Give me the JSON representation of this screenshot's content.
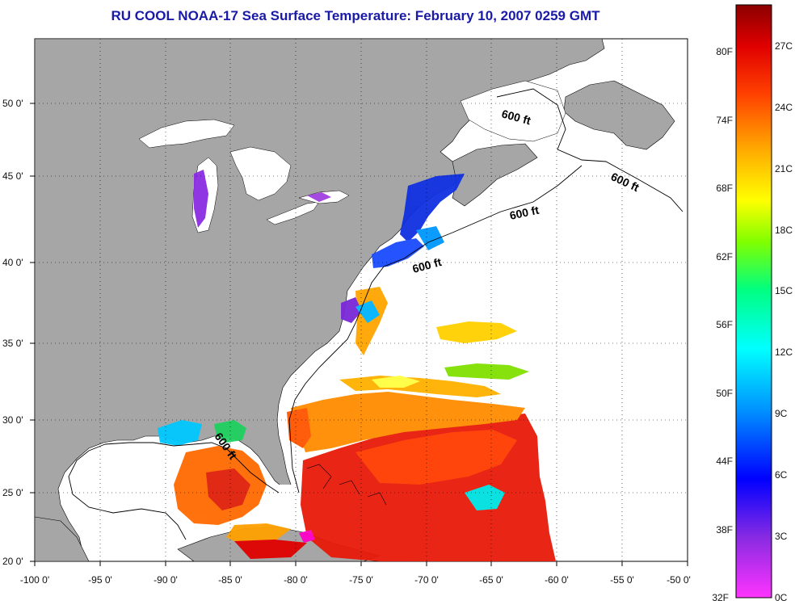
{
  "title": "RU COOL  NOAA-17  Sea Surface Temperature:  February 10, 2007 0259 GMT",
  "map": {
    "lon_labels": [
      "-100 0'",
      "-95 0'",
      "-90 0'",
      "-85 0'",
      "-80 0'",
      "-75 0'",
      "-70 0'",
      "-65 0'",
      "-60 0'",
      "-55 0'",
      "-50 0'"
    ],
    "lat_labels": [
      "50 0'",
      "45 0'",
      "40 0'",
      "35 0'",
      "30 0'",
      "25 0'",
      "20 0'"
    ],
    "lon_range": [
      -100,
      -50
    ],
    "lat_range": [
      20,
      52.5
    ],
    "gridlines": true,
    "land_color": "#a6a6a6",
    "ocean_nodata_color": "#ffffff",
    "contour_labels": [
      "600 ft",
      "600 ft",
      "600 ft",
      "600 ft",
      "600 ft"
    ]
  },
  "colorbar": {
    "fahrenheit_labels": [
      "80F",
      "74F",
      "68F",
      "62F",
      "56F",
      "50F",
      "44F",
      "38F",
      "32F"
    ],
    "celsius_labels": [
      "27C",
      "24C",
      "21C",
      "18C",
      "15C",
      "12C",
      "9C",
      "6C",
      "3C",
      "0C"
    ],
    "range_celsius": [
      0,
      28.5
    ],
    "colors": [
      "#ff33ff",
      "#8a2be2",
      "#0000ff",
      "#0096ff",
      "#00ffff",
      "#00ff80",
      "#80ff00",
      "#ffff00",
      "#ffa500",
      "#ff4000",
      "#e00000",
      "#8b0000"
    ]
  }
}
